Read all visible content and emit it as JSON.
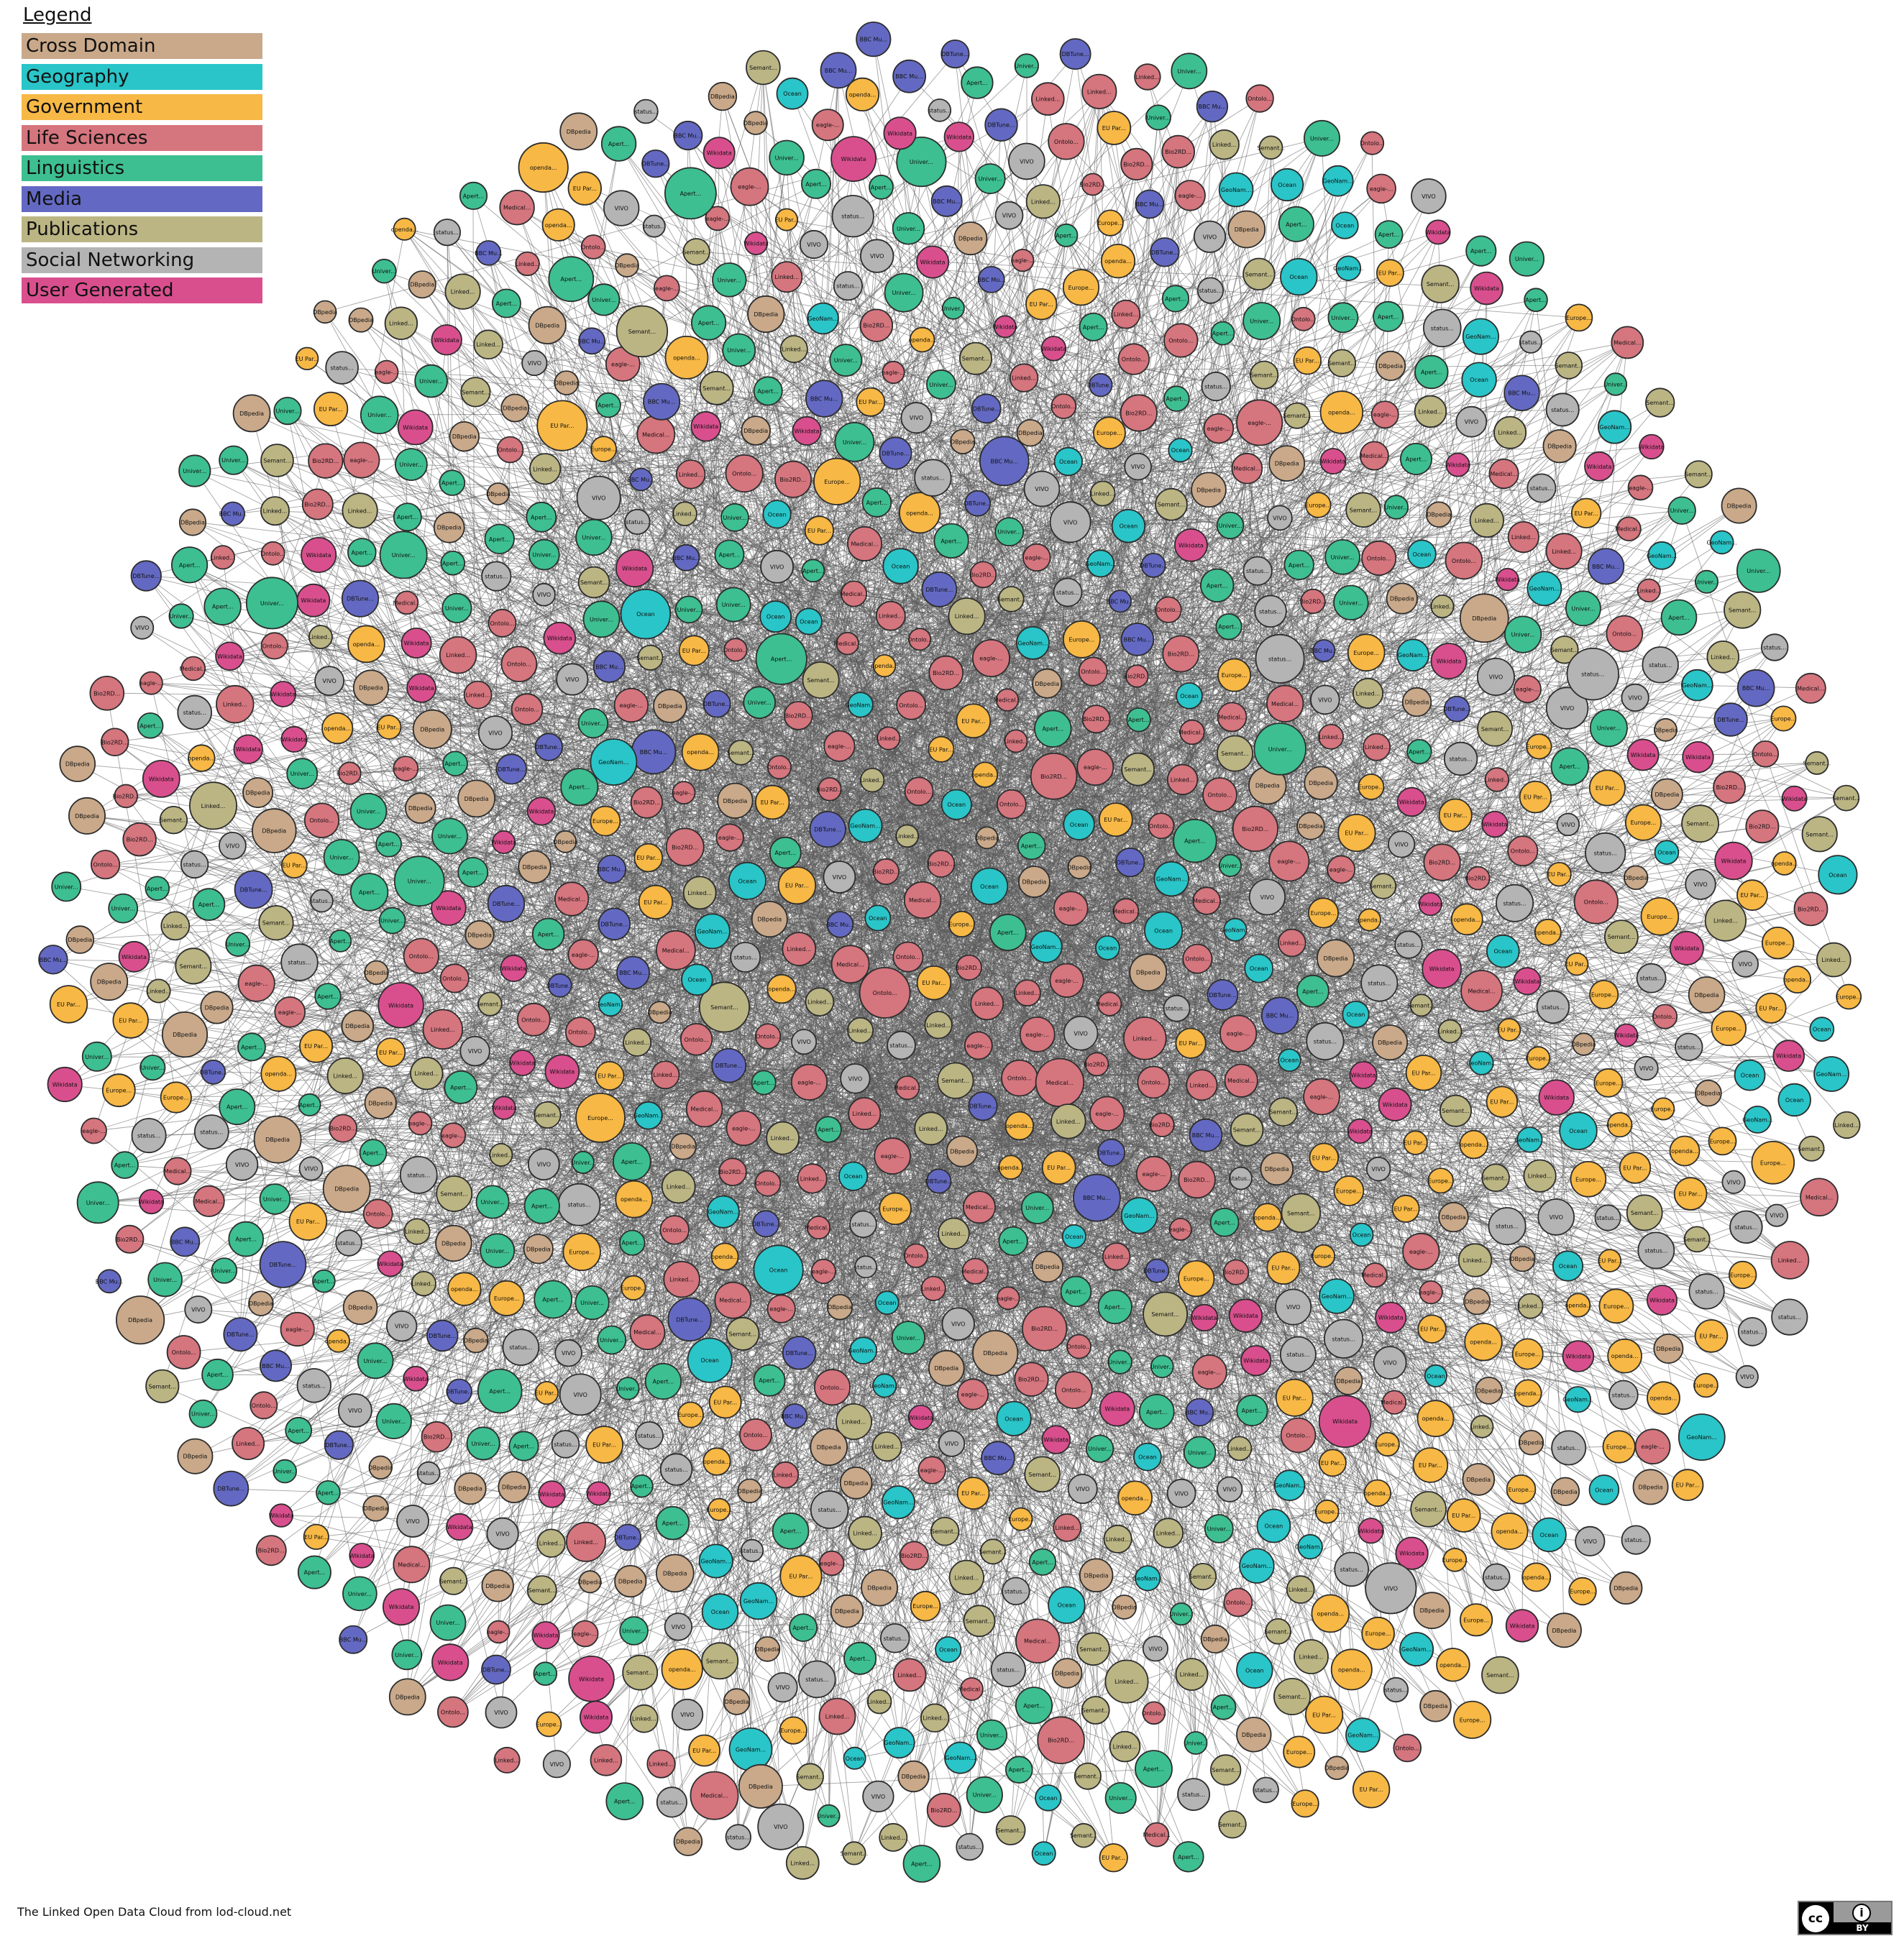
{
  "legend": {
    "title": "Legend",
    "items": [
      {
        "label": "Cross Domain",
        "color": "#c9a98a"
      },
      {
        "label": "Geography",
        "color": "#29c5c8"
      },
      {
        "label": "Government",
        "color": "#f7b845"
      },
      {
        "label": "Life Sciences",
        "color": "#d5757e"
      },
      {
        "label": "Linguistics",
        "color": "#3dbf91"
      },
      {
        "label": "Media",
        "color": "#6369c2"
      },
      {
        "label": "Publications",
        "color": "#bbb584"
      },
      {
        "label": "Social Networking",
        "color": "#b4b4b4"
      },
      {
        "label": "User Generated",
        "color": "#d94f8e"
      }
    ]
  },
  "caption": "The Linked Open Data Cloud from lod-cloud.net",
  "license": {
    "cc": "cc",
    "by": "BY"
  },
  "nodes_sample": [
    {
      "label": "Bio2RD...",
      "category": "Life Sciences"
    },
    {
      "label": "Ocean",
      "category": "Geography"
    },
    {
      "label": "DBpedia",
      "category": "Cross Domain"
    },
    {
      "label": "GeoNam...",
      "category": "Geography"
    },
    {
      "label": "Wikidata",
      "category": "User Generated"
    },
    {
      "label": "Linked...",
      "category": "Publications"
    },
    {
      "label": "status...",
      "category": "Social Networking"
    },
    {
      "label": "Univer...",
      "category": "Linguistics"
    },
    {
      "label": "DBTune...",
      "category": "Media"
    },
    {
      "label": "openda...",
      "category": "Government"
    },
    {
      "label": "EU Par...",
      "category": "Government"
    },
    {
      "label": "eagle-...",
      "category": "Life Sciences"
    },
    {
      "label": "Apert...",
      "category": "Linguistics"
    },
    {
      "label": "Medical...",
      "category": "Life Sciences"
    },
    {
      "label": "Linked...",
      "category": "Life Sciences"
    },
    {
      "label": "VIVO",
      "category": "Social Networking"
    },
    {
      "label": "Ontolo...",
      "category": "Life Sciences"
    },
    {
      "label": "BBC Mu...",
      "category": "Media"
    },
    {
      "label": "Europe...",
      "category": "Government"
    },
    {
      "label": "Semant...",
      "category": "Publications"
    }
  ]
}
